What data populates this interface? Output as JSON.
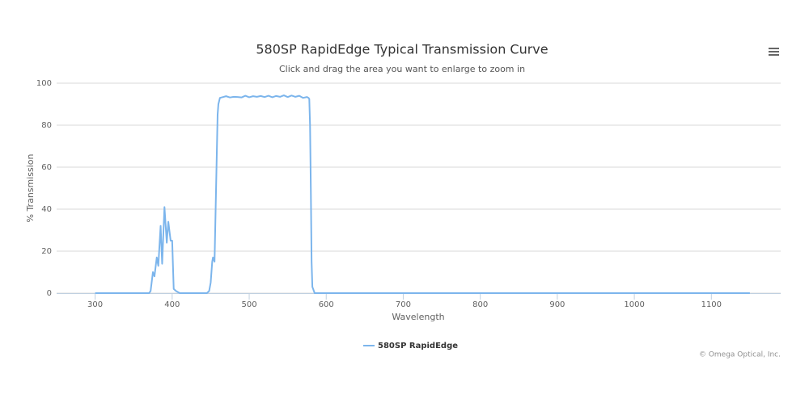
{
  "chart_data": {
    "type": "line",
    "title": "580SP RapidEdge Typical Transmission Curve",
    "subtitle": "Click and drag the area you want to enlarge to zoom in",
    "x_label": "Wavelength",
    "y_label": "% Transmission",
    "credit": "© Omega Optical, Inc.",
    "xlim": [
      250,
      1190
    ],
    "ylim": [
      0,
      100
    ],
    "xticks": [
      300,
      400,
      500,
      600,
      700,
      800,
      900,
      1000,
      1100
    ],
    "yticks": [
      0,
      20,
      40,
      60,
      80,
      100
    ],
    "grid": true,
    "legend": "bottom",
    "series": [
      {
        "name": "580SP RapidEdge",
        "color": "#7cb5ec",
        "x": [
          300,
          370,
          372,
          375,
          377,
          380,
          382,
          385,
          387,
          390,
          393,
          395,
          398,
          400,
          402,
          405,
          410,
          445,
          448,
          450,
          452,
          453,
          455,
          457,
          459,
          460,
          462,
          465,
          470,
          475,
          480,
          485,
          490,
          495,
          500,
          505,
          510,
          515,
          520,
          525,
          530,
          535,
          540,
          545,
          550,
          555,
          560,
          565,
          570,
          575,
          577,
          578,
          579,
          580,
          581,
          582,
          585,
          600,
          700,
          800,
          900,
          1000,
          1100,
          1150
        ],
        "values": [
          0,
          0,
          1,
          10,
          8,
          17,
          13,
          32,
          14,
          41,
          24,
          34,
          25,
          25,
          2,
          1,
          0,
          0,
          1,
          5,
          15,
          17,
          15,
          50,
          85,
          90,
          93,
          93.3,
          93.8,
          93.2,
          93.5,
          93.4,
          93.2,
          94,
          93.3,
          93.8,
          93.5,
          93.9,
          93.4,
          94,
          93.3,
          93.9,
          93.5,
          94.2,
          93.4,
          94.1,
          93.5,
          94,
          93,
          93.4,
          93,
          92.5,
          80,
          50,
          15,
          3,
          0,
          0,
          0,
          0,
          0,
          0,
          0,
          0
        ]
      }
    ]
  }
}
